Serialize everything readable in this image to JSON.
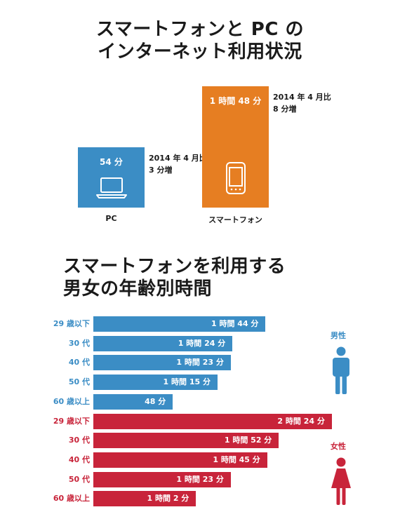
{
  "title1": [
    "スマートフォンと PC の",
    "インターネット利用状況"
  ],
  "title2": [
    "スマートフォンを利用する",
    "男女の年齢別時間"
  ],
  "colors": {
    "blue": "#3b8dc5",
    "orange": "#e67e22",
    "red": "#c8243a"
  },
  "chart_data": [
    {
      "type": "bar",
      "categories": [
        "PC",
        "スマートフォン"
      ],
      "values": [
        54,
        108
      ],
      "units": "minutes",
      "value_labels": [
        "54 分",
        "1 時間 48 分"
      ],
      "annotations": [
        {
          "category": "PC",
          "lines": [
            "2014 年 4 月比",
            "3 分増"
          ]
        },
        {
          "category": "スマートフォン",
          "lines": [
            "2014 年 4 月比",
            "8 分増"
          ]
        }
      ],
      "icons": [
        "laptop-icon",
        "smartphone-icon"
      ]
    },
    {
      "type": "bar",
      "orientation": "horizontal",
      "units": "minutes",
      "groups": [
        {
          "name": "男性",
          "icon": "male-icon",
          "categories": [
            "29 歳以下",
            "30 代",
            "40 代",
            "50 代",
            "60 歳以上"
          ],
          "values": [
            104,
            84,
            83,
            75,
            48
          ],
          "value_labels": [
            "1 時間 44 分",
            "1 時間 24 分",
            "1 時間 23 分",
            "1 時間 15 分",
            "48 分"
          ]
        },
        {
          "name": "女性",
          "icon": "female-icon",
          "categories": [
            "29 歳以下",
            "30 代",
            "40 代",
            "50 代",
            "60 歳以上"
          ],
          "values": [
            144,
            112,
            105,
            83,
            62
          ],
          "value_labels": [
            "2 時間 24 分",
            "1 時間 52 分",
            "1 時間 45 分",
            "1 時間 23 分",
            "1 時間 2 分"
          ]
        }
      ]
    }
  ]
}
